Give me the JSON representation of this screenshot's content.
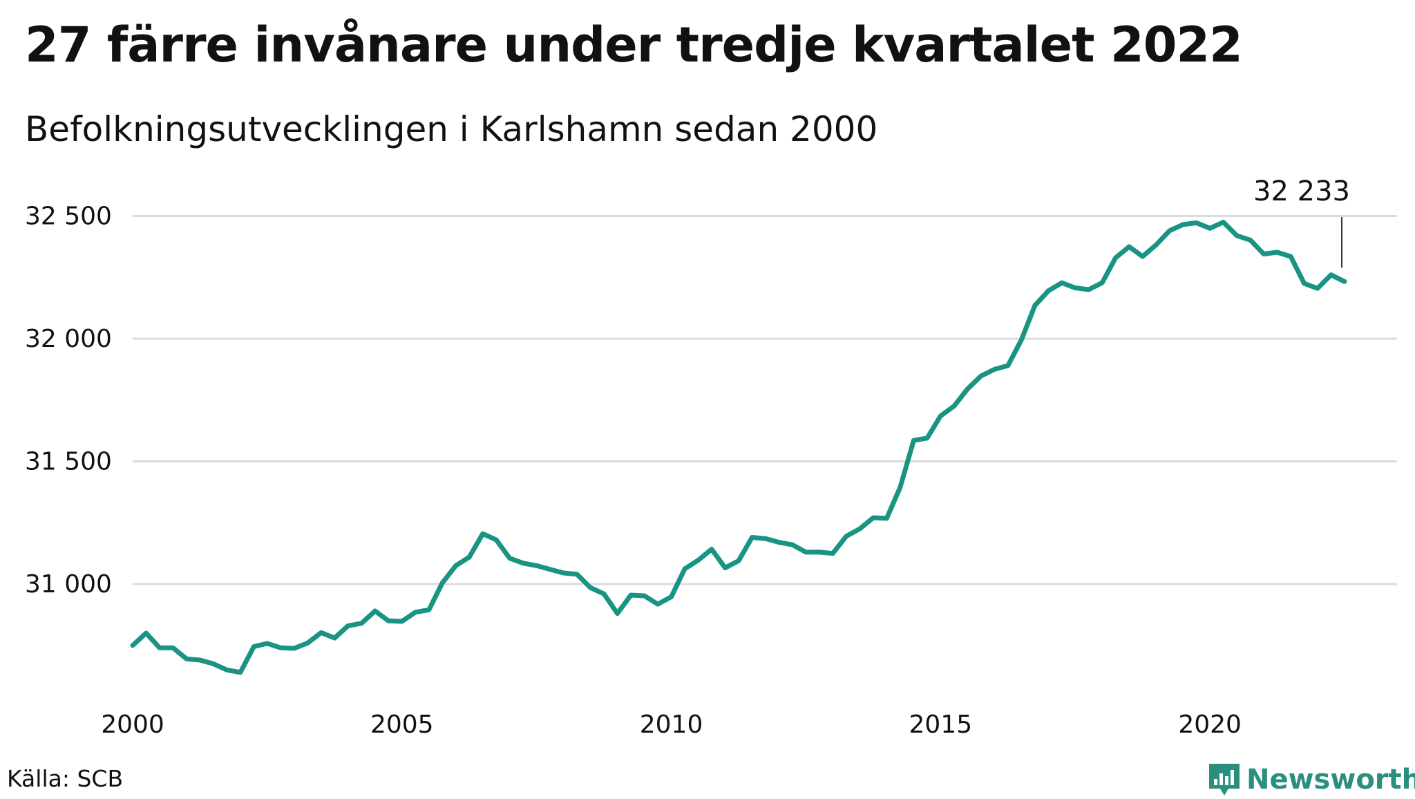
{
  "header": {
    "title": "27 färre invånare under tredje kvartalet 2022",
    "subtitle": "Befolkningsutvecklingen i Karlshamn sedan 2000"
  },
  "footer": {
    "source": "Källa: SCB",
    "brand": "Newsworthy"
  },
  "colors": {
    "line": "#1a9482",
    "grid": "#dcdcdc",
    "text": "#111111",
    "brand": "#2a8f7f"
  },
  "icons": {
    "brand_logo": "newsworthy-bar-chart-icon"
  },
  "chart_data": {
    "type": "line",
    "title": "27 färre invånare under tredje kvartalet 2022",
    "subtitle": "Befolkningsutvecklingen i Karlshamn sedan 2000",
    "xlabel": "",
    "ylabel": "",
    "x_ticks": [
      2000,
      2005,
      2010,
      2015,
      2020
    ],
    "x_tick_labels": [
      "2000",
      "2005",
      "2010",
      "2015",
      "2020"
    ],
    "y_ticks": [
      31000,
      31500,
      32000,
      32500
    ],
    "y_tick_labels": [
      "31 000",
      "31 500",
      "32 000",
      "32 500"
    ],
    "xlim": [
      2000,
      2023.25
    ],
    "ylim": [
      30550,
      32620
    ],
    "grid": true,
    "legend": "none",
    "annotation": {
      "label": "32 233",
      "x": 2022.5,
      "y": 32233
    },
    "series": [
      {
        "x": [
          2000,
          2000.25,
          2000.5,
          2000.75,
          2001,
          2001.25,
          2001.5,
          2001.75,
          2002,
          2002.25,
          2002.5,
          2002.75,
          2003,
          2003.25,
          2003.5,
          2003.75,
          2004,
          2004.25,
          2004.5,
          2004.75,
          2005,
          2005.25,
          2005.5,
          2005.75,
          2006,
          2006.25,
          2006.5,
          2006.75,
          2007,
          2007.25,
          2007.5,
          2007.75,
          2008,
          2008.25,
          2008.5,
          2008.75,
          2009,
          2009.25,
          2009.5,
          2009.75,
          2010,
          2010.25,
          2010.5,
          2010.75,
          2011,
          2011.25,
          2011.5,
          2011.75,
          2012,
          2012.25,
          2012.5,
          2012.75,
          2013,
          2013.25,
          2013.5,
          2013.75,
          2014,
          2014.25,
          2014.5,
          2014.75,
          2015,
          2015.25,
          2015.5,
          2015.75,
          2016,
          2016.25,
          2016.5,
          2016.75,
          2017,
          2017.25,
          2017.5,
          2017.75,
          2018,
          2018.25,
          2018.5,
          2018.75,
          2019,
          2019.25,
          2019.5,
          2019.75,
          2020,
          2020.25,
          2020.5,
          2020.75,
          2021,
          2021.25,
          2021.5,
          2021.75,
          2022,
          2022.25,
          2022.5
        ],
        "values": [
          30750,
          30800,
          30740,
          30740,
          30695,
          30690,
          30675,
          30650,
          30640,
          30745,
          30758,
          30740,
          30738,
          30760,
          30802,
          30780,
          30830,
          30840,
          30890,
          30850,
          30848,
          30885,
          30895,
          31005,
          31075,
          31110,
          31205,
          31180,
          31105,
          31085,
          31075,
          31060,
          31045,
          31040,
          30985,
          30960,
          30880,
          30955,
          30952,
          30918,
          30948,
          31062,
          31097,
          31142,
          31066,
          31095,
          31190,
          31185,
          31170,
          31160,
          31130,
          31130,
          31125,
          31195,
          31225,
          31270,
          31268,
          31395,
          31585,
          31595,
          31685,
          31725,
          31795,
          31848,
          31875,
          31890,
          31995,
          32135,
          32195,
          32228,
          32207,
          32200,
          32228,
          32330,
          32375,
          32335,
          32382,
          32440,
          32465,
          32472,
          32450,
          32475,
          32420,
          32402,
          32345,
          32352,
          32335,
          32225,
          32205,
          32260,
          32233
        ]
      }
    ]
  }
}
